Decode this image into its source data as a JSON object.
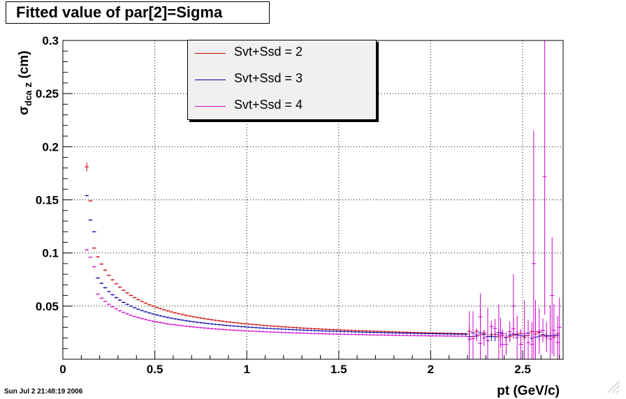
{
  "title": "Fitted value of par[2]=Sigma",
  "timestamp": "Sun Jul  2 21:48:19 2006",
  "chart_data": {
    "type": "scatter",
    "title": "Fitted value of par[2]=Sigma",
    "xlabel": "pt (GeV/c)",
    "ylabel": "σdca z (cm)",
    "xlim": [
      0,
      2.72
    ],
    "ylim": [
      0.0,
      0.3
    ],
    "x_ticks": [
      "0",
      "0.5",
      "1",
      "1.5",
      "2",
      "2.5"
    ],
    "y_ticks": [
      "0.05",
      "0.1",
      "0.15",
      "0.2",
      "0.25",
      "0.3"
    ],
    "grid": true,
    "legend_position": "top-center",
    "series": [
      {
        "name": "Svt+Ssd = 2",
        "color": "#cc0000",
        "style": "errorbar"
      },
      {
        "name": "Svt+Ssd = 3",
        "color": "#0000aa",
        "style": "errorbar"
      },
      {
        "name": "Svt+Ssd = 4",
        "color": "#cc00cc",
        "style": "errorbar"
      }
    ]
  }
}
